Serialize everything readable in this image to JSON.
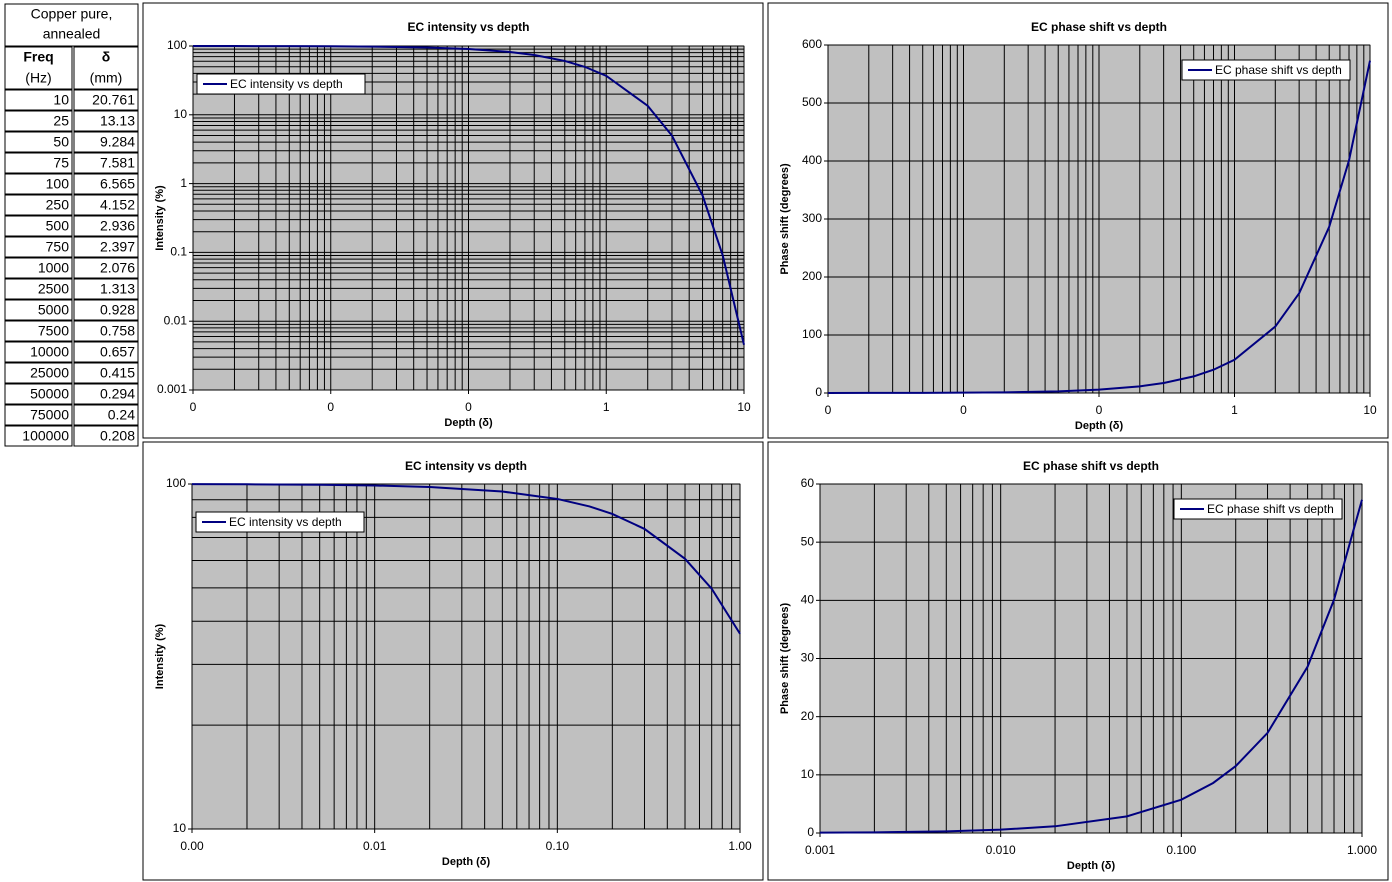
{
  "table": {
    "title": [
      "Copper pure,",
      "annealed"
    ],
    "headers": [
      "Freq",
      "δ"
    ],
    "units": [
      "(Hz)",
      "(mm)"
    ],
    "rows": [
      [
        10,
        20.761
      ],
      [
        25,
        13.13
      ],
      [
        50,
        9.284
      ],
      [
        75,
        7.581
      ],
      [
        100,
        6.565
      ],
      [
        250,
        4.152
      ],
      [
        500,
        2.936
      ],
      [
        750,
        2.397
      ],
      [
        1000,
        2.076
      ],
      [
        2500,
        1.313
      ],
      [
        5000,
        0.928
      ],
      [
        7500,
        0.758
      ],
      [
        10000,
        0.657
      ],
      [
        25000,
        0.415
      ],
      [
        50000,
        0.294
      ],
      [
        75000,
        0.24
      ],
      [
        100000,
        0.208
      ]
    ]
  },
  "chart_data": [
    {
      "type": "line",
      "title": "EC  intensity vs depth",
      "x_label": "Depth (δ)",
      "y_label": "Intensity (%)",
      "x": [
        0.001,
        0.002,
        0.005,
        0.01,
        0.02,
        0.05,
        0.1,
        0.2,
        0.3,
        0.5,
        0.7,
        1,
        2,
        3,
        5,
        7,
        10
      ],
      "series": [
        {
          "name": "EC  intensity vs depth",
          "color": "#000080",
          "values": [
            99.9,
            99.8,
            99.5,
            99.0,
            98.0,
            95.1,
            90.5,
            81.9,
            74.1,
            60.7,
            49.7,
            36.8,
            13.5,
            4.98,
            0.674,
            0.0912,
            0.00454
          ]
        }
      ],
      "xlim": [
        0.001,
        10
      ],
      "xticks": [
        {
          "value": 0.001,
          "label": "0"
        },
        {
          "value": 0.01,
          "label": "0"
        },
        {
          "value": 0.1,
          "label": "0"
        },
        1,
        10
      ],
      "ylim": [
        0.001,
        100
      ],
      "yticks": [
        0.001,
        0.01,
        0.1,
        1,
        10,
        100
      ],
      "x_log": true,
      "y_log": true,
      "grid": true,
      "legend": "upper-left"
    },
    {
      "type": "line",
      "title": "EC phase shift vs depth",
      "x_label": "Depth (δ)",
      "y_label": "Phase shift (degrees)",
      "x": [
        0.001,
        0.002,
        0.005,
        0.01,
        0.02,
        0.05,
        0.1,
        0.2,
        0.3,
        0.5,
        0.7,
        1,
        2,
        3,
        5,
        7,
        10
      ],
      "series": [
        {
          "name": "EC phase shift vs depth",
          "color": "#000080",
          "values": [
            0.0573,
            0.115,
            0.286,
            0.573,
            1.15,
            2.86,
            5.73,
            11.5,
            17.2,
            28.6,
            40.1,
            57.3,
            114.6,
            171.9,
            286.5,
            401.1,
            573
          ]
        }
      ],
      "xlim": [
        0.001,
        10
      ],
      "xticks": [
        {
          "value": 0.001,
          "label": "0"
        },
        {
          "value": 0.01,
          "label": "0"
        },
        {
          "value": 0.1,
          "label": "0"
        },
        1,
        10
      ],
      "ylim": [
        0,
        600
      ],
      "yticks": [
        0,
        100,
        200,
        300,
        400,
        500,
        600
      ],
      "x_log": true,
      "y_log": false,
      "grid": true,
      "legend": "upper-right"
    },
    {
      "type": "line",
      "title": "EC  intensity vs depth",
      "x_label": "Depth (δ)",
      "y_label": "Intensity (%)",
      "x": [
        0.001,
        0.002,
        0.005,
        0.01,
        0.02,
        0.05,
        0.1,
        0.15,
        0.2,
        0.3,
        0.5,
        0.7,
        1
      ],
      "series": [
        {
          "name": "EC  intensity vs depth",
          "color": "#000080",
          "values": [
            99.9,
            99.8,
            99.5,
            99.0,
            98.0,
            95.1,
            90.5,
            86.1,
            81.9,
            74.1,
            60.7,
            49.7,
            36.8
          ]
        }
      ],
      "xlim": [
        0.001,
        1
      ],
      "xticks": [
        {
          "value": 0.001,
          "label": "0.00"
        },
        {
          "value": 0.01,
          "label": "0.01"
        },
        {
          "value": 0.1,
          "label": "0.10"
        },
        {
          "value": 1,
          "label": "1.00"
        }
      ],
      "ylim": [
        10,
        100
      ],
      "yticks": [
        10,
        100
      ],
      "x_log": true,
      "y_log": true,
      "grid": true,
      "legend": "upper-left"
    },
    {
      "type": "line",
      "title": "EC phase shift vs depth",
      "x_label": "Depth (δ)",
      "y_label": "Phase shift (degrees)",
      "x": [
        0.001,
        0.002,
        0.005,
        0.01,
        0.02,
        0.05,
        0.1,
        0.15,
        0.2,
        0.3,
        0.5,
        0.7,
        1
      ],
      "series": [
        {
          "name": "EC phase shift vs depth",
          "color": "#000080",
          "values": [
            0.0573,
            0.115,
            0.286,
            0.573,
            1.15,
            2.86,
            5.73,
            8.6,
            11.5,
            17.2,
            28.6,
            40.1,
            57.3
          ]
        }
      ],
      "xlim": [
        0.001,
        1
      ],
      "xticks": [
        {
          "value": 0.001,
          "label": "0.001"
        },
        {
          "value": 0.01,
          "label": "0.010"
        },
        {
          "value": 0.1,
          "label": "0.100"
        },
        {
          "value": 1,
          "label": "1.000"
        }
      ],
      "ylim": [
        0,
        60
      ],
      "yticks": [
        0,
        10,
        20,
        30,
        40,
        50,
        60
      ],
      "x_log": true,
      "y_log": false,
      "grid": true,
      "legend": "upper-right"
    }
  ]
}
